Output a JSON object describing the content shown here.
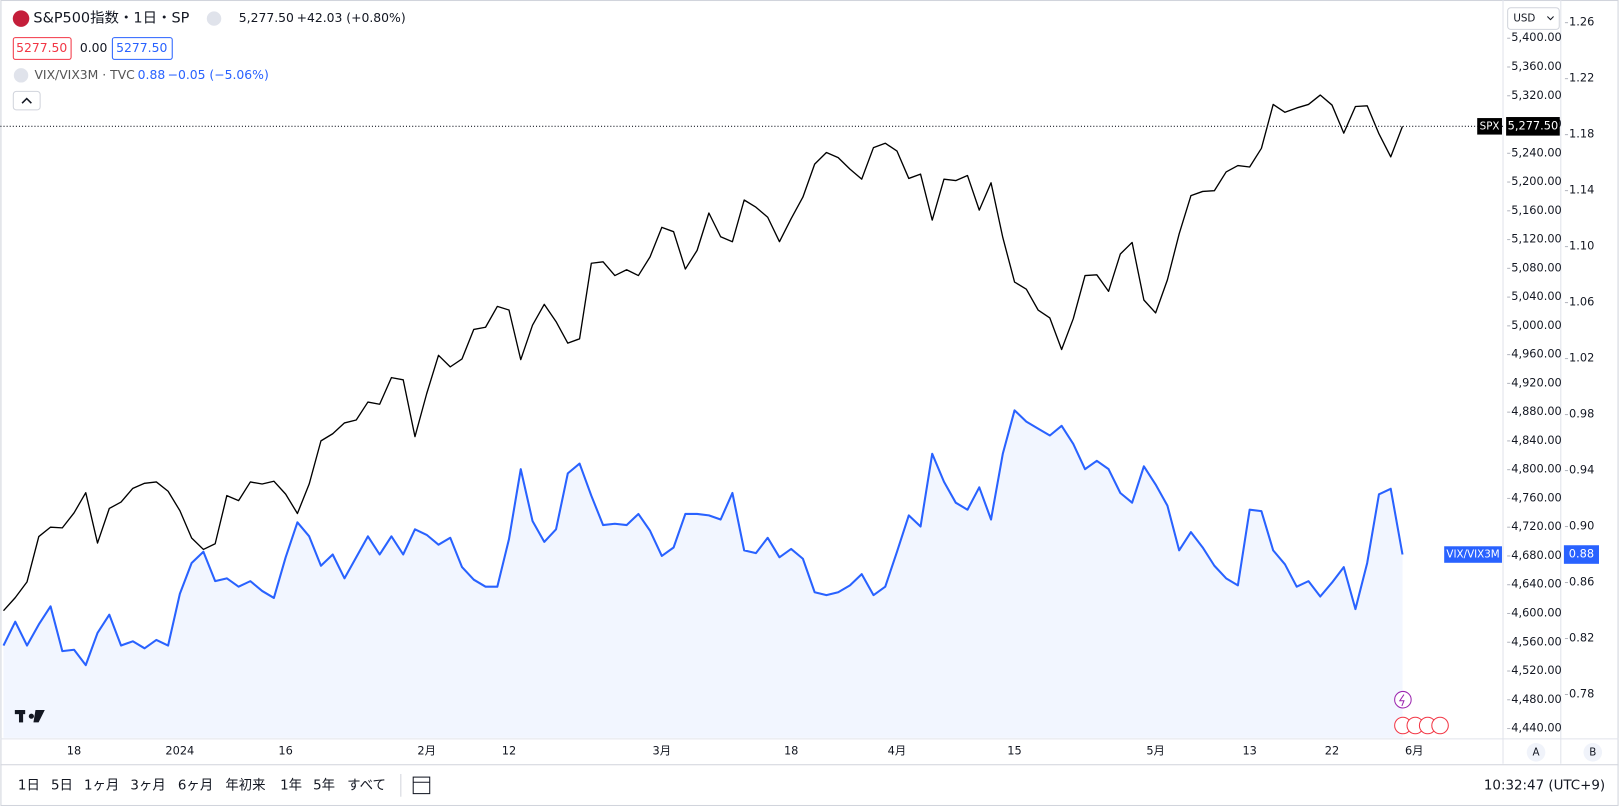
{
  "header": {
    "title": "S&P500指数・1日・SP",
    "price": "5,277.50",
    "change": "+42.03 (+0.80%)",
    "bid": "5277.50",
    "spread": "0.00",
    "ask": "5277.50"
  },
  "legend": {
    "symbol": "VIX/VIX3M · TVC",
    "price": "0.88",
    "change": "−0.05 (−5.06%)"
  },
  "currency": "USD",
  "price_tags": {
    "spx": "5,277.50",
    "vix": "0.88"
  },
  "axis_buttons": [
    "A",
    "B"
  ],
  "toolbar": {
    "ranges": [
      "1日",
      "5日",
      "1ヶ月",
      "3ヶ月",
      "6ヶ月",
      "年初来",
      "1年",
      "5年",
      "すべて"
    ],
    "time": "10:32:47 (UTC+9)"
  },
  "chart_data": {
    "type": "line",
    "grid": false,
    "categories": [
      null,
      null,
      null,
      null,
      null,
      null,
      "18",
      null,
      null,
      null,
      null,
      null,
      null,
      null,
      null,
      "2024",
      null,
      null,
      null,
      null,
      null,
      null,
      null,
      null,
      "16",
      null,
      null,
      null,
      null,
      null,
      null,
      null,
      null,
      null,
      null,
      null,
      "2月",
      null,
      null,
      null,
      null,
      null,
      null,
      "12",
      null,
      null,
      null,
      null,
      null,
      null,
      null,
      null,
      null,
      null,
      null,
      null,
      "3月",
      null,
      null,
      null,
      null,
      null,
      null,
      null,
      null,
      null,
      null,
      "18",
      null,
      null,
      null,
      null,
      null,
      null,
      null,
      null,
      "4月",
      null,
      null,
      null,
      null,
      null,
      null,
      null,
      null,
      null,
      "15",
      null,
      null,
      null,
      null,
      null,
      null,
      null,
      null,
      null,
      null,
      null,
      "5月",
      null,
      null,
      null,
      null,
      null,
      null,
      null,
      "13",
      null,
      null,
      null,
      null,
      null,
      null,
      "22",
      null,
      null,
      null,
      null,
      null,
      null,
      "6月"
    ],
    "ylim": [
      4427,
      5446
    ],
    "yticks": [
      {
        "value": 4440,
        "label": "4,440.00"
      },
      {
        "value": 4480,
        "label": "4,480.00"
      },
      {
        "value": 4520,
        "label": "4,520.00"
      },
      {
        "value": 4560,
        "label": "4,560.00"
      },
      {
        "value": 4600,
        "label": "4,600.00"
      },
      {
        "value": 4640,
        "label": "4,640.00"
      },
      {
        "value": 4680,
        "label": "4,680.00"
      },
      {
        "value": 4720,
        "label": "4,720.00"
      },
      {
        "value": 4760,
        "label": "4,760.00"
      },
      {
        "value": 4800,
        "label": "4,800.00"
      },
      {
        "value": 4840,
        "label": "4,840.00"
      },
      {
        "value": 4880,
        "label": "4,880.00"
      },
      {
        "value": 4920,
        "label": "4,920.00"
      },
      {
        "value": 4960,
        "label": "4,960.00"
      },
      {
        "value": 5000,
        "label": "5,000.00"
      },
      {
        "value": 5040,
        "label": "5,040.00"
      },
      {
        "value": 5080,
        "label": "5,080.00"
      },
      {
        "value": 5120,
        "label": "5,120.00"
      },
      {
        "value": 5160,
        "label": "5,160.00"
      },
      {
        "value": 5200,
        "label": "5,200.00"
      },
      {
        "value": 5240,
        "label": "5,240.00"
      },
      {
        "value": 5280,
        "label": "5,280.00"
      },
      {
        "value": 5320,
        "label": "5,320.00"
      },
      {
        "value": 5360,
        "label": "5,360.00"
      },
      {
        "value": 5400,
        "label": "5,400.00"
      }
    ],
    "y2lim": [
      0.749,
      1.2725
    ],
    "y2ticks": [
      0.78,
      0.82,
      0.86,
      {
        "value": 0.9,
        "label": "0.90"
      },
      0.94,
      0.98,
      1.02,
      1.06,
      {
        "value": 1.1,
        "label": "1.10"
      },
      1.14,
      1.18,
      1.22,
      1.26
    ],
    "series": [
      {
        "name": "SPX",
        "color": "#000000",
        "axis": "y",
        "values": [
          4604,
          4622,
          4644,
          4707,
          4720,
          4719,
          4740,
          4768,
          4698,
          4746,
          4755,
          4774,
          4781,
          4783,
          4770,
          4743,
          4705,
          4689,
          4697,
          4764,
          4757,
          4783,
          4780,
          4784,
          4766,
          4739,
          4780,
          4840,
          4850,
          4865,
          4869,
          4894,
          4891,
          4928,
          4925,
          4846,
          4906,
          4959,
          4943,
          4954,
          4995,
          4998,
          5027,
          5022,
          4953,
          5001,
          5030,
          5006,
          4976,
          4982,
          5087,
          5089,
          5070,
          5078,
          5070,
          5096,
          5137,
          5131,
          5079,
          5105,
          5157,
          5124,
          5117,
          5175,
          5165,
          5151,
          5117,
          5149,
          5179,
          5225,
          5241,
          5234,
          5218,
          5204,
          5248,
          5254,
          5243,
          5205,
          5211,
          5147,
          5204,
          5202,
          5209,
          5161,
          5199,
          5123,
          5061,
          5051,
          5022,
          5011,
          4967,
          5010,
          5070,
          5071,
          5048,
          5100,
          5116,
          5036,
          5018,
          5064,
          5128,
          5181,
          5187,
          5188,
          5214,
          5223,
          5221,
          5247,
          5308,
          5297,
          5303,
          5308,
          5321,
          5307,
          5268,
          5305,
          5306,
          5267,
          5235,
          5277.5,
          null
        ]
      },
      {
        "name": "VIX/VIX3M",
        "color": "#2962ff",
        "axis": "y2",
        "area": true,
        "values": [
          0.815,
          0.832,
          0.815,
          0.83,
          0.843,
          0.811,
          0.812,
          0.801,
          0.824,
          0.837,
          0.815,
          0.818,
          0.813,
          0.819,
          0.815,
          0.852,
          0.874,
          0.882,
          0.861,
          0.863,
          0.857,
          0.861,
          0.854,
          0.849,
          0.878,
          0.903,
          0.893,
          0.872,
          0.88,
          0.863,
          0.878,
          0.893,
          0.88,
          0.893,
          0.88,
          0.898,
          0.894,
          0.887,
          0.892,
          0.871,
          0.862,
          0.857,
          0.857,
          0.891,
          0.941,
          0.904,
          0.889,
          0.898,
          0.938,
          0.945,
          0.922,
          0.901,
          0.902,
          0.901,
          0.909,
          0.897,
          0.879,
          0.885,
          0.909,
          0.909,
          0.908,
          0.905,
          0.924,
          0.883,
          0.881,
          0.892,
          0.878,
          0.884,
          0.877,
          0.853,
          0.851,
          0.853,
          0.858,
          0.866,
          0.851,
          0.857,
          0.882,
          0.908,
          0.9,
          0.952,
          0.932,
          0.917,
          0.912,
          0.928,
          0.905,
          0.952,
          0.983,
          0.975,
          0.97,
          0.965,
          0.972,
          0.959,
          0.941,
          0.947,
          0.941,
          0.924,
          0.917,
          0.943,
          0.93,
          0.915,
          0.883,
          0.896,
          0.885,
          0.872,
          0.863,
          0.858,
          0.912,
          0.911,
          0.883,
          0.873,
          0.857,
          0.861,
          0.85,
          0.86,
          0.871,
          0.841,
          0.874,
          0.923,
          0.927,
          0.88,
          null
        ]
      }
    ]
  }
}
